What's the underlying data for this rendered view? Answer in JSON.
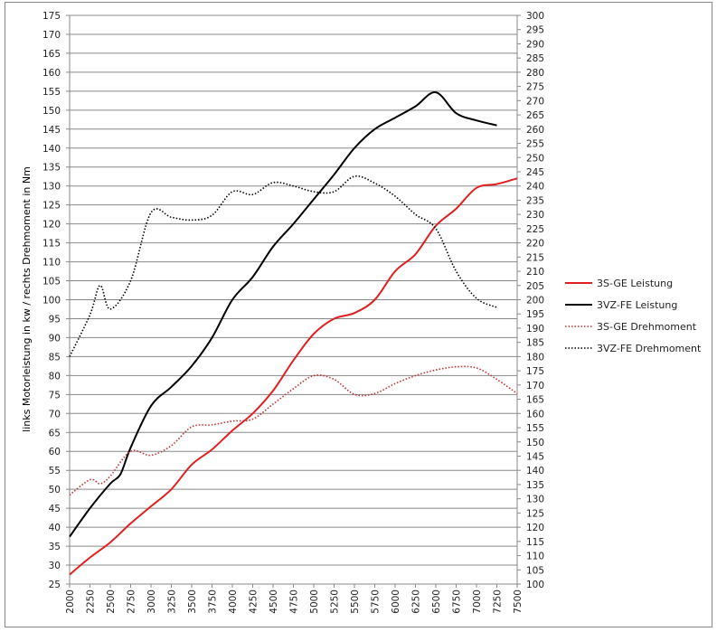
{
  "chart_data": {
    "type": "line",
    "title": "",
    "xlabel": "",
    "ylabel": "links Motorleistung in kw / rechts Drehmoment in Nm",
    "xlim": [
      2000,
      7500
    ],
    "xticks": [
      2000,
      2250,
      2500,
      2750,
      3000,
      3250,
      3500,
      3750,
      4000,
      4250,
      4500,
      4750,
      5000,
      5250,
      5500,
      5750,
      6000,
      6250,
      6500,
      6750,
      7000,
      7250,
      7500
    ],
    "ylim_left": [
      25,
      175
    ],
    "ytick_step_left": 5,
    "ylim_right": [
      100,
      300
    ],
    "ytick_step_right": 5,
    "grid": "horizontal",
    "legend_position": "right",
    "series": [
      {
        "name": "3S-GE Leistung",
        "axis": "left",
        "color": "#e02020",
        "style": "solid",
        "x": [
          2000,
          2250,
          2500,
          2750,
          3000,
          3250,
          3500,
          3750,
          4000,
          4250,
          4500,
          4750,
          5000,
          5250,
          5500,
          5750,
          6000,
          6250,
          6500,
          6750,
          7000,
          7250,
          7500
        ],
        "y": [
          27.5,
          32,
          36,
          41,
          45.5,
          50,
          56.5,
          60.5,
          65.5,
          70,
          76,
          84,
          91,
          95,
          96.5,
          100,
          107.5,
          112,
          119.5,
          124,
          129.5,
          130.5,
          132
        ]
      },
      {
        "name": "3VZ-FE Leistung",
        "axis": "left",
        "color": "#000000",
        "style": "solid",
        "x": [
          2000,
          2250,
          2500,
          2625,
          2750,
          3000,
          3250,
          3500,
          3750,
          4000,
          4250,
          4500,
          4750,
          5000,
          5250,
          5500,
          5750,
          6000,
          6250,
          6500,
          6750,
          7000,
          7250
        ],
        "y": [
          37.5,
          45,
          51.5,
          54,
          61,
          72,
          77,
          82.5,
          90,
          100,
          106,
          114,
          120,
          126.5,
          133,
          140,
          145,
          148,
          151,
          154.7,
          149.2,
          147.3,
          146
        ]
      },
      {
        "name": "3S-GE Drehmoment",
        "axis": "right",
        "color": "#c03030",
        "style": "dotted",
        "x": [
          2000,
          2250,
          2375,
          2500,
          2750,
          3000,
          3250,
          3500,
          3750,
          4000,
          4250,
          4500,
          4750,
          5000,
          5250,
          5500,
          5750,
          6000,
          6250,
          6500,
          6750,
          7000,
          7250,
          7500
        ],
        "y": [
          131.3,
          136.7,
          135.3,
          138,
          146.7,
          145.3,
          148.7,
          155.3,
          156,
          157.3,
          158,
          163.3,
          168.7,
          173.3,
          172,
          166.7,
          167,
          170.5,
          173.3,
          175.3,
          176.4,
          176,
          172,
          167
        ]
      },
      {
        "name": "3VZ-FE Drehmoment",
        "axis": "right",
        "color": "#000000",
        "style": "dotted",
        "x": [
          2000,
          2250,
          2375,
          2500,
          2750,
          3000,
          3250,
          3500,
          3750,
          4000,
          4250,
          4500,
          4750,
          5000,
          5250,
          5500,
          5750,
          6000,
          6250,
          6500,
          6750,
          7000,
          7250
        ],
        "y": [
          180,
          194.7,
          205,
          196.7,
          206.7,
          230.6,
          229,
          228,
          229.7,
          238,
          237,
          241.2,
          240,
          238,
          238,
          243.4,
          241,
          236.4,
          230,
          225,
          210,
          200.5,
          197.3
        ]
      }
    ]
  }
}
